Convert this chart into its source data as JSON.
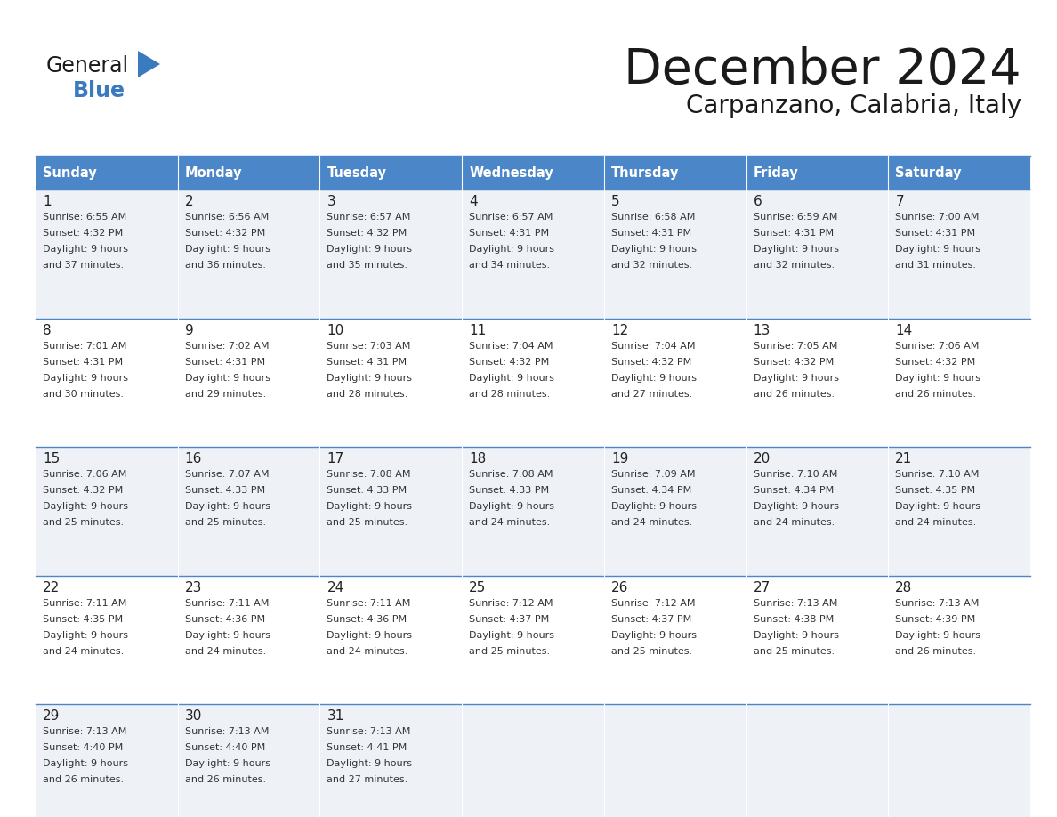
{
  "title": "December 2024",
  "subtitle": "Carpanzano, Calabria, Italy",
  "days_of_week": [
    "Sunday",
    "Monday",
    "Tuesday",
    "Wednesday",
    "Thursday",
    "Friday",
    "Saturday"
  ],
  "header_bg": "#4a86c8",
  "header_text": "#ffffff",
  "row_bg_light": "#eef2f7",
  "row_bg_white": "#ffffff",
  "border_color": "#4a86c8",
  "day_num_color": "#222222",
  "text_color": "#333333",
  "calendar_data": [
    [
      {
        "day": 1,
        "sunrise": "6:55 AM",
        "sunset": "4:32 PM",
        "daylight_hrs": 9,
        "daylight_min": 37
      },
      {
        "day": 2,
        "sunrise": "6:56 AM",
        "sunset": "4:32 PM",
        "daylight_hrs": 9,
        "daylight_min": 36
      },
      {
        "day": 3,
        "sunrise": "6:57 AM",
        "sunset": "4:32 PM",
        "daylight_hrs": 9,
        "daylight_min": 35
      },
      {
        "day": 4,
        "sunrise": "6:57 AM",
        "sunset": "4:31 PM",
        "daylight_hrs": 9,
        "daylight_min": 34
      },
      {
        "day": 5,
        "sunrise": "6:58 AM",
        "sunset": "4:31 PM",
        "daylight_hrs": 9,
        "daylight_min": 32
      },
      {
        "day": 6,
        "sunrise": "6:59 AM",
        "sunset": "4:31 PM",
        "daylight_hrs": 9,
        "daylight_min": 32
      },
      {
        "day": 7,
        "sunrise": "7:00 AM",
        "sunset": "4:31 PM",
        "daylight_hrs": 9,
        "daylight_min": 31
      }
    ],
    [
      {
        "day": 8,
        "sunrise": "7:01 AM",
        "sunset": "4:31 PM",
        "daylight_hrs": 9,
        "daylight_min": 30
      },
      {
        "day": 9,
        "sunrise": "7:02 AM",
        "sunset": "4:31 PM",
        "daylight_hrs": 9,
        "daylight_min": 29
      },
      {
        "day": 10,
        "sunrise": "7:03 AM",
        "sunset": "4:31 PM",
        "daylight_hrs": 9,
        "daylight_min": 28
      },
      {
        "day": 11,
        "sunrise": "7:04 AM",
        "sunset": "4:32 PM",
        "daylight_hrs": 9,
        "daylight_min": 28
      },
      {
        "day": 12,
        "sunrise": "7:04 AM",
        "sunset": "4:32 PM",
        "daylight_hrs": 9,
        "daylight_min": 27
      },
      {
        "day": 13,
        "sunrise": "7:05 AM",
        "sunset": "4:32 PM",
        "daylight_hrs": 9,
        "daylight_min": 26
      },
      {
        "day": 14,
        "sunrise": "7:06 AM",
        "sunset": "4:32 PM",
        "daylight_hrs": 9,
        "daylight_min": 26
      }
    ],
    [
      {
        "day": 15,
        "sunrise": "7:06 AM",
        "sunset": "4:32 PM",
        "daylight_hrs": 9,
        "daylight_min": 25
      },
      {
        "day": 16,
        "sunrise": "7:07 AM",
        "sunset": "4:33 PM",
        "daylight_hrs": 9,
        "daylight_min": 25
      },
      {
        "day": 17,
        "sunrise": "7:08 AM",
        "sunset": "4:33 PM",
        "daylight_hrs": 9,
        "daylight_min": 25
      },
      {
        "day": 18,
        "sunrise": "7:08 AM",
        "sunset": "4:33 PM",
        "daylight_hrs": 9,
        "daylight_min": 24
      },
      {
        "day": 19,
        "sunrise": "7:09 AM",
        "sunset": "4:34 PM",
        "daylight_hrs": 9,
        "daylight_min": 24
      },
      {
        "day": 20,
        "sunrise": "7:10 AM",
        "sunset": "4:34 PM",
        "daylight_hrs": 9,
        "daylight_min": 24
      },
      {
        "day": 21,
        "sunrise": "7:10 AM",
        "sunset": "4:35 PM",
        "daylight_hrs": 9,
        "daylight_min": 24
      }
    ],
    [
      {
        "day": 22,
        "sunrise": "7:11 AM",
        "sunset": "4:35 PM",
        "daylight_hrs": 9,
        "daylight_min": 24
      },
      {
        "day": 23,
        "sunrise": "7:11 AM",
        "sunset": "4:36 PM",
        "daylight_hrs": 9,
        "daylight_min": 24
      },
      {
        "day": 24,
        "sunrise": "7:11 AM",
        "sunset": "4:36 PM",
        "daylight_hrs": 9,
        "daylight_min": 24
      },
      {
        "day": 25,
        "sunrise": "7:12 AM",
        "sunset": "4:37 PM",
        "daylight_hrs": 9,
        "daylight_min": 25
      },
      {
        "day": 26,
        "sunrise": "7:12 AM",
        "sunset": "4:37 PM",
        "daylight_hrs": 9,
        "daylight_min": 25
      },
      {
        "day": 27,
        "sunrise": "7:13 AM",
        "sunset": "4:38 PM",
        "daylight_hrs": 9,
        "daylight_min": 25
      },
      {
        "day": 28,
        "sunrise": "7:13 AM",
        "sunset": "4:39 PM",
        "daylight_hrs": 9,
        "daylight_min": 26
      }
    ],
    [
      {
        "day": 29,
        "sunrise": "7:13 AM",
        "sunset": "4:40 PM",
        "daylight_hrs": 9,
        "daylight_min": 26
      },
      {
        "day": 30,
        "sunrise": "7:13 AM",
        "sunset": "4:40 PM",
        "daylight_hrs": 9,
        "daylight_min": 26
      },
      {
        "day": 31,
        "sunrise": "7:13 AM",
        "sunset": "4:41 PM",
        "daylight_hrs": 9,
        "daylight_min": 27
      },
      null,
      null,
      null,
      null
    ]
  ]
}
